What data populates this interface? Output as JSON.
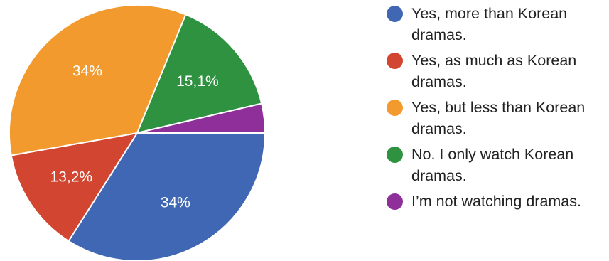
{
  "chart_data": {
    "type": "pie",
    "title": "",
    "start_angle_deg": 0,
    "direction": "clockwise",
    "slices": [
      {
        "label": "Yes, more than Korean dramas.",
        "value": 34,
        "display": "34%",
        "color": "#3f67b3"
      },
      {
        "label": "Yes, as much as Korean dramas.",
        "value": 13.2,
        "display": "13,2%",
        "color": "#d24530"
      },
      {
        "label": "Yes, but less than Korean dramas.",
        "value": 34,
        "display": "34%",
        "color": "#f39a2f"
      },
      {
        "label": "No. I only watch Korean dramas.",
        "value": 15.1,
        "display": "15,1%",
        "color": "#2f9240"
      },
      {
        "label": "I’m not watching dramas.",
        "value": 3.7,
        "display": "",
        "color": "#8f2f9a"
      }
    ],
    "legend_position": "right"
  }
}
